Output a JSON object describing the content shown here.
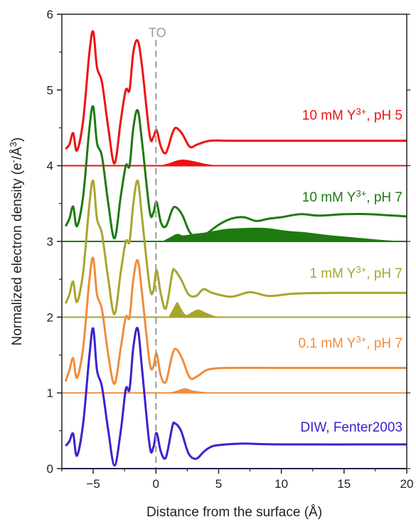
{
  "chart_data": {
    "type": "line",
    "xlabel": "Distance from the surface (Å)",
    "ylabel_parts": {
      "main": "Normalized electron density (e",
      "sup1": "-",
      "mid": "/Å",
      "sup2": "3",
      "end": ")"
    },
    "xlim": [
      -7.5,
      20
    ],
    "ylim": [
      0,
      6
    ],
    "x_ticks": [
      -5,
      0,
      5,
      10,
      15,
      20
    ],
    "y_ticks": [
      0,
      1,
      2,
      3,
      4,
      5,
      6
    ],
    "annotation": {
      "text": "TO",
      "x": 0
    },
    "series": [
      {
        "label_main": "DIW, Fenter2003",
        "label_sup": "",
        "label_tail": "",
        "color": "#3a22cc",
        "baseline": 0,
        "curve": [
          [
            -7.2,
            0.3
          ],
          [
            -6.9,
            0.36
          ],
          [
            -6.6,
            0.46
          ],
          [
            -6.3,
            0.17
          ],
          [
            -5.8,
            0.6
          ],
          [
            -5.3,
            1.5
          ],
          [
            -5.0,
            1.85
          ],
          [
            -4.7,
            1.3
          ],
          [
            -4.3,
            1.08
          ],
          [
            -3.8,
            0.5
          ],
          [
            -3.3,
            0.04
          ],
          [
            -2.8,
            0.5
          ],
          [
            -2.4,
            1.05
          ],
          [
            -2.1,
            1.05
          ],
          [
            -1.8,
            1.6
          ],
          [
            -1.45,
            1.85
          ],
          [
            -1.1,
            1.3
          ],
          [
            -0.5,
            0.3
          ],
          [
            -0.2,
            0.28
          ],
          [
            0.05,
            0.47
          ],
          [
            0.4,
            0.22
          ],
          [
            0.8,
            0.15
          ],
          [
            1.3,
            0.55
          ],
          [
            1.5,
            0.6
          ],
          [
            2.0,
            0.5
          ],
          [
            2.6,
            0.2
          ],
          [
            3.2,
            0.13
          ],
          [
            3.8,
            0.22
          ],
          [
            4.3,
            0.28
          ],
          [
            5.0,
            0.31
          ],
          [
            7,
            0.33
          ],
          [
            10,
            0.32
          ],
          [
            20,
            0.32
          ]
        ],
        "fill": []
      },
      {
        "label_main": "0.1 mM Y",
        "label_sup": "3+",
        "label_tail": ", pH 7",
        "color": "#f08c3c",
        "baseline": 1,
        "curve": [
          [
            -7.2,
            1.15
          ],
          [
            -6.9,
            1.3
          ],
          [
            -6.6,
            1.46
          ],
          [
            -6.3,
            1.2
          ],
          [
            -5.8,
            1.6
          ],
          [
            -5.3,
            2.5
          ],
          [
            -5.0,
            2.78
          ],
          [
            -4.7,
            2.3
          ],
          [
            -4.3,
            2.1
          ],
          [
            -3.8,
            1.5
          ],
          [
            -3.3,
            1.12
          ],
          [
            -2.8,
            1.6
          ],
          [
            -2.4,
            2.0
          ],
          [
            -2.1,
            2.0
          ],
          [
            -1.8,
            2.5
          ],
          [
            -1.45,
            2.75
          ],
          [
            -1.1,
            2.3
          ],
          [
            -0.5,
            1.4
          ],
          [
            -0.2,
            1.35
          ],
          [
            0.05,
            1.52
          ],
          [
            0.4,
            1.22
          ],
          [
            0.8,
            1.15
          ],
          [
            1.3,
            1.5
          ],
          [
            1.6,
            1.58
          ],
          [
            2.1,
            1.45
          ],
          [
            2.7,
            1.2
          ],
          [
            3.3,
            1.22
          ],
          [
            4.2,
            1.31
          ],
          [
            6,
            1.33
          ],
          [
            10,
            1.33
          ],
          [
            20,
            1.33
          ]
        ],
        "fill": [
          [
            0.8,
            1.0
          ],
          [
            1.5,
            1.02
          ],
          [
            2.3,
            1.06
          ],
          [
            3.0,
            1.03
          ],
          [
            4.0,
            1.01
          ],
          [
            5.0,
            1.0
          ]
        ]
      },
      {
        "label_main": "1 mM Y",
        "label_sup": "3+",
        "label_tail": ", pH 7",
        "color": "#a8a52e",
        "baseline": 2,
        "curve": [
          [
            -7.2,
            2.18
          ],
          [
            -6.9,
            2.3
          ],
          [
            -6.6,
            2.47
          ],
          [
            -6.3,
            2.2
          ],
          [
            -5.8,
            2.6
          ],
          [
            -5.3,
            3.5
          ],
          [
            -5.0,
            3.8
          ],
          [
            -4.7,
            3.3
          ],
          [
            -4.3,
            3.1
          ],
          [
            -3.8,
            2.5
          ],
          [
            -3.3,
            2.04
          ],
          [
            -2.8,
            2.6
          ],
          [
            -2.4,
            3.0
          ],
          [
            -2.1,
            3.0
          ],
          [
            -1.8,
            3.5
          ],
          [
            -1.45,
            3.8
          ],
          [
            -1.1,
            3.3
          ],
          [
            -0.5,
            2.4
          ],
          [
            -0.2,
            2.35
          ],
          [
            0.05,
            2.62
          ],
          [
            0.4,
            2.3
          ],
          [
            0.8,
            2.12
          ],
          [
            1.3,
            2.58
          ],
          [
            1.5,
            2.62
          ],
          [
            2.0,
            2.5
          ],
          [
            2.6,
            2.3
          ],
          [
            3.2,
            2.28
          ],
          [
            3.8,
            2.37
          ],
          [
            4.5,
            2.32
          ],
          [
            6,
            2.27
          ],
          [
            7.5,
            2.33
          ],
          [
            9,
            2.28
          ],
          [
            11,
            2.31
          ],
          [
            14,
            2.32
          ],
          [
            20,
            2.32
          ]
        ],
        "fill": [
          [
            1.0,
            2.0
          ],
          [
            1.4,
            2.12
          ],
          [
            1.7,
            2.2
          ],
          [
            2.0,
            2.12
          ],
          [
            2.4,
            2.03
          ],
          [
            2.9,
            2.07
          ],
          [
            3.4,
            2.1
          ],
          [
            4.0,
            2.06
          ],
          [
            4.6,
            2.02
          ],
          [
            5.2,
            2.0
          ]
        ]
      },
      {
        "label_main": "10 mM Y",
        "label_sup": "3+",
        "label_tail": ", pH 7",
        "color": "#1e7a10",
        "baseline": 3,
        "curve": [
          [
            -7.2,
            3.2
          ],
          [
            -6.9,
            3.3
          ],
          [
            -6.6,
            3.46
          ],
          [
            -6.3,
            3.2
          ],
          [
            -5.8,
            3.6
          ],
          [
            -5.3,
            4.5
          ],
          [
            -5.0,
            4.78
          ],
          [
            -4.7,
            4.3
          ],
          [
            -4.3,
            4.12
          ],
          [
            -3.8,
            3.5
          ],
          [
            -3.3,
            3.04
          ],
          [
            -2.8,
            3.6
          ],
          [
            -2.4,
            4.0
          ],
          [
            -2.1,
            4.0
          ],
          [
            -1.8,
            4.5
          ],
          [
            -1.45,
            4.73
          ],
          [
            -1.1,
            4.3
          ],
          [
            -0.5,
            3.4
          ],
          [
            -0.2,
            3.38
          ],
          [
            0.05,
            3.52
          ],
          [
            0.4,
            3.25
          ],
          [
            0.8,
            3.2
          ],
          [
            1.3,
            3.42
          ],
          [
            1.6,
            3.45
          ],
          [
            2.1,
            3.35
          ],
          [
            2.7,
            3.12
          ],
          [
            3.3,
            3.06
          ],
          [
            4.0,
            3.1
          ],
          [
            5.0,
            3.22
          ],
          [
            6,
            3.3
          ],
          [
            7,
            3.32
          ],
          [
            8,
            3.27
          ],
          [
            9,
            3.3
          ],
          [
            10,
            3.32
          ],
          [
            11.5,
            3.36
          ],
          [
            13,
            3.34
          ],
          [
            15,
            3.36
          ],
          [
            17,
            3.36
          ],
          [
            20,
            3.33
          ]
        ],
        "fill": [
          [
            0.5,
            3.0
          ],
          [
            1.2,
            3.06
          ],
          [
            1.7,
            3.1
          ],
          [
            2.2,
            3.08
          ],
          [
            3.0,
            3.1
          ],
          [
            4.0,
            3.12
          ],
          [
            5.0,
            3.15
          ],
          [
            6.0,
            3.17
          ],
          [
            8.5,
            3.18
          ],
          [
            10.5,
            3.14
          ],
          [
            12,
            3.12
          ],
          [
            14,
            3.08
          ],
          [
            16,
            3.05
          ],
          [
            18,
            3.02
          ],
          [
            20,
            3.0
          ]
        ]
      },
      {
        "label_main": "10 mM Y",
        "label_sup": "3+",
        "label_tail": ", pH 5",
        "color": "#ee1111",
        "baseline": 4,
        "curve": [
          [
            -7.2,
            4.22
          ],
          [
            -6.9,
            4.28
          ],
          [
            -6.6,
            4.43
          ],
          [
            -6.3,
            4.2
          ],
          [
            -5.8,
            4.6
          ],
          [
            -5.3,
            5.5
          ],
          [
            -5.0,
            5.77
          ],
          [
            -4.7,
            5.3
          ],
          [
            -4.3,
            5.1
          ],
          [
            -3.8,
            4.5
          ],
          [
            -3.3,
            4.03
          ],
          [
            -2.8,
            4.6
          ],
          [
            -2.4,
            5.0
          ],
          [
            -2.1,
            5.0
          ],
          [
            -1.8,
            5.5
          ],
          [
            -1.45,
            5.65
          ],
          [
            -1.1,
            5.3
          ],
          [
            -0.5,
            4.4
          ],
          [
            -0.2,
            4.38
          ],
          [
            0.05,
            4.47
          ],
          [
            0.4,
            4.25
          ],
          [
            0.8,
            4.17
          ],
          [
            1.3,
            4.42
          ],
          [
            1.6,
            4.5
          ],
          [
            2.1,
            4.42
          ],
          [
            2.7,
            4.25
          ],
          [
            3.3,
            4.28
          ],
          [
            4.3,
            4.33
          ],
          [
            6,
            4.33
          ],
          [
            10,
            4.33
          ],
          [
            20,
            4.33
          ]
        ],
        "fill": [
          [
            0.3,
            4.0
          ],
          [
            1.0,
            4.03
          ],
          [
            1.7,
            4.07
          ],
          [
            2.3,
            4.08
          ],
          [
            3.0,
            4.06
          ],
          [
            3.8,
            4.03
          ],
          [
            4.5,
            4.01
          ],
          [
            5.2,
            4.0
          ]
        ]
      }
    ]
  }
}
